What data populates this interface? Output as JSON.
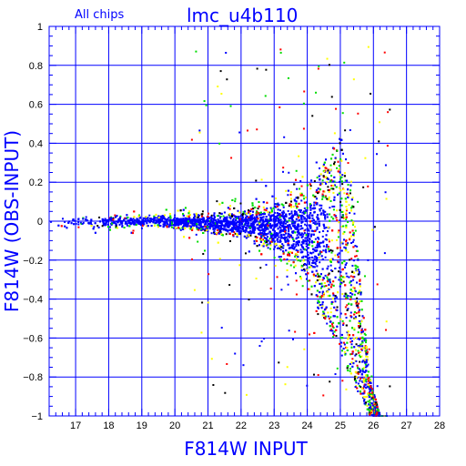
{
  "chart_data": {
    "type": "scatter",
    "title": "lmc_u4b110",
    "subtitle": "All chips",
    "xlabel": "F814W INPUT",
    "ylabel": "F814W (OBS-INPUT)",
    "xlim": [
      16.2,
      28
    ],
    "ylim": [
      -1,
      1
    ],
    "x_ticks": [
      17,
      18,
      19,
      20,
      21,
      22,
      23,
      24,
      25,
      26,
      27,
      28
    ],
    "y_ticks": [
      1,
      0.8,
      0.6,
      0.4,
      0.2,
      0,
      -0.2,
      -0.4,
      -0.6,
      -0.8,
      -1
    ],
    "y_tick_labels": [
      "1",
      "0.8",
      "0.6",
      "0.4",
      "0.2",
      "0",
      "−0.2",
      "−0.4",
      "−0.6",
      "−0.8",
      "−1"
    ],
    "grid": true,
    "point_colors": [
      "#0000ff",
      "#00dd00",
      "#ff0000",
      "#ffff00",
      "#000000"
    ],
    "series_envelope": {
      "x": [
        16.2,
        18,
        19,
        20,
        21,
        22,
        23,
        23.5,
        24,
        24.5,
        24.8,
        25,
        25.3,
        25.6,
        25.9,
        26.2
      ],
      "upper": [
        0.03,
        0.03,
        0.04,
        0.04,
        0.05,
        0.07,
        0.12,
        0.16,
        0.22,
        0.3,
        0.38,
        0.45,
        0.3,
        -0.3,
        -0.8,
        -1
      ],
      "lower": [
        -0.04,
        -0.04,
        -0.04,
        -0.05,
        -0.07,
        -0.1,
        -0.18,
        -0.25,
        -0.35,
        -0.5,
        -0.6,
        -0.7,
        -0.8,
        -0.9,
        -1,
        -1
      ]
    }
  }
}
